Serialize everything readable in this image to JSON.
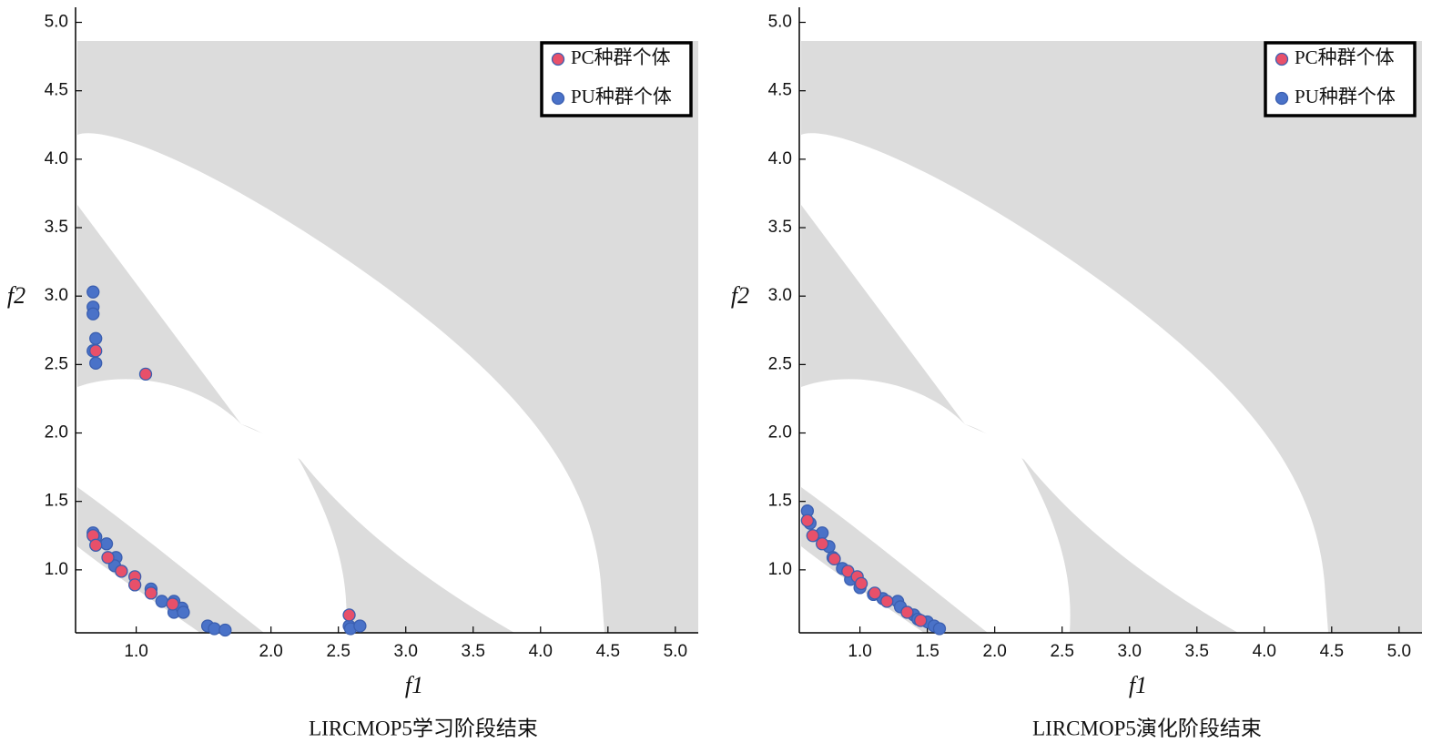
{
  "chart_data": [
    {
      "type": "scatter",
      "title": "LIRCMOP5学习阶段结束",
      "xlabel": "f1",
      "ylabel": "f2",
      "xlim": [
        0.55,
        5.17
      ],
      "ylim": [
        0.54,
        5.11
      ],
      "xticks": [
        {
          "value": 1,
          "label": "1.0"
        },
        {
          "value": 2,
          "label": "2.0"
        },
        2.5,
        {
          "value": 3,
          "label": "3.0"
        },
        3.5,
        {
          "value": 4,
          "label": "4.0"
        },
        4.5,
        {
          "value": 5,
          "label": "5.0"
        }
      ],
      "yticks": [
        {
          "value": 1,
          "label": "1.0"
        },
        1.5,
        {
          "value": 2,
          "label": "2.0"
        },
        2.5,
        {
          "value": 3,
          "label": "3.0"
        },
        3.5,
        {
          "value": 4,
          "label": "4.0"
        },
        4.5,
        {
          "value": 5,
          "label": "5.0"
        }
      ],
      "legend": "upper right",
      "series": [
        {
          "name": "PC种群个体",
          "color": "#e8506a",
          "x": [
            0.7,
            1.07,
            0.68,
            0.7,
            0.79,
            0.89,
            0.99,
            0.99,
            1.11,
            1.27,
            2.58
          ],
          "y": [
            2.6,
            2.43,
            1.25,
            1.18,
            1.09,
            0.99,
            0.95,
            0.89,
            0.83,
            0.75,
            0.67
          ]
        },
        {
          "name": "PU种群个体",
          "color": "#4a72c8",
          "x": [
            0.68,
            0.68,
            0.68,
            0.7,
            0.68,
            0.7,
            0.68,
            0.7,
            0.78,
            0.85,
            0.84,
            0.89,
            1.11,
            1.19,
            1.28,
            1.28,
            1.34,
            1.35,
            1.53,
            1.58,
            1.66,
            2.58,
            2.59,
            2.66
          ],
          "y": [
            3.03,
            2.92,
            2.87,
            2.69,
            2.6,
            2.51,
            1.27,
            1.24,
            1.19,
            1.09,
            1.03,
            0.99,
            0.86,
            0.77,
            0.77,
            0.69,
            0.72,
            0.69,
            0.59,
            0.57,
            0.56,
            0.59,
            0.57,
            0.59
          ]
        }
      ]
    },
    {
      "type": "scatter",
      "title": "LIRCMOP5演化阶段结束",
      "xlabel": "f1",
      "ylabel": "f2",
      "xlim": [
        0.55,
        5.17
      ],
      "ylim": [
        0.54,
        5.11
      ],
      "xticks": [
        {
          "value": 1,
          "label": "1.0"
        },
        1.5,
        {
          "value": 2,
          "label": "2.0"
        },
        2.5,
        {
          "value": 3,
          "label": "3.0"
        },
        3.5,
        {
          "value": 4,
          "label": "4.0"
        },
        4.5,
        {
          "value": 5,
          "label": "5.0"
        }
      ],
      "yticks": [
        {
          "value": 1,
          "label": "1.0"
        },
        1.5,
        {
          "value": 2,
          "label": "2.0"
        },
        2.5,
        {
          "value": 3,
          "label": "3.0"
        },
        3.5,
        {
          "value": 4,
          "label": "4.0"
        },
        4.5,
        {
          "value": 5,
          "label": "5.0"
        }
      ],
      "legend": "upper right",
      "series": [
        {
          "name": "PC种群个体",
          "color": "#e8506a",
          "x": [
            0.61,
            0.65,
            0.72,
            0.81,
            0.91,
            0.98,
            1.01,
            1.11,
            1.2,
            1.35,
            1.45
          ],
          "y": [
            1.36,
            1.25,
            1.19,
            1.08,
            0.99,
            0.95,
            0.9,
            0.83,
            0.77,
            0.69,
            0.63
          ]
        },
        {
          "name": "PU种群个体",
          "color": "#4a72c8",
          "x": [
            0.61,
            0.63,
            0.72,
            0.77,
            0.8,
            0.87,
            0.93,
            1.0,
            1.1,
            1.17,
            1.28,
            1.3,
            1.4,
            1.43,
            1.5,
            1.55,
            1.59
          ],
          "y": [
            1.43,
            1.34,
            1.27,
            1.17,
            1.09,
            1.01,
            0.93,
            0.87,
            0.82,
            0.79,
            0.77,
            0.73,
            0.67,
            0.64,
            0.62,
            0.59,
            0.57
          ]
        }
      ]
    }
  ]
}
